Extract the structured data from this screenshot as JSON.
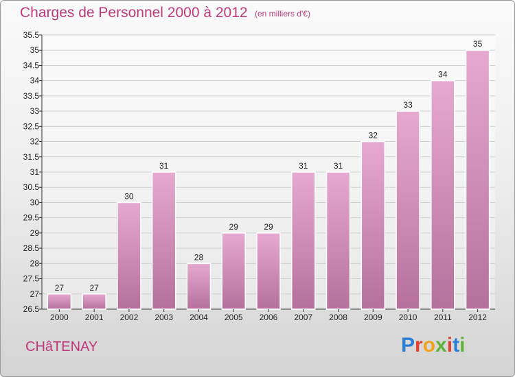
{
  "header": {
    "title": "Charges de Personnel 2000 à 2012",
    "unit": "(en milliers d'€)"
  },
  "footer": {
    "town": "CHâTENAY",
    "logo": "Proxiti"
  },
  "colors": {
    "title": "#c0397b",
    "bar_top": "#e6a9d0",
    "bar_bottom": "#b5709c",
    "grid": "#d0d0d0"
  },
  "chart_data": {
    "type": "bar",
    "title": "Charges de Personnel 2000 à 2012",
    "subtitle": "(en milliers d'€)",
    "xlabel": "",
    "ylabel": "",
    "categories": [
      "2000",
      "2001",
      "2002",
      "2003",
      "2004",
      "2005",
      "2006",
      "2007",
      "2008",
      "2009",
      "2010",
      "2011",
      "2012"
    ],
    "values": [
      27,
      27,
      30,
      31,
      28,
      29,
      29,
      31,
      31,
      32,
      33,
      34,
      35
    ],
    "ylim": [
      26.5,
      35.5
    ],
    "yticks": [
      "26.5",
      "27",
      "27.5",
      "28",
      "28.5",
      "29",
      "29.5",
      "30",
      "30.5",
      "31",
      "31.5",
      "32",
      "32.5",
      "33",
      "33.5",
      "34",
      "34.5",
      "35",
      "35.5"
    ],
    "grid": true,
    "legend": "none"
  }
}
